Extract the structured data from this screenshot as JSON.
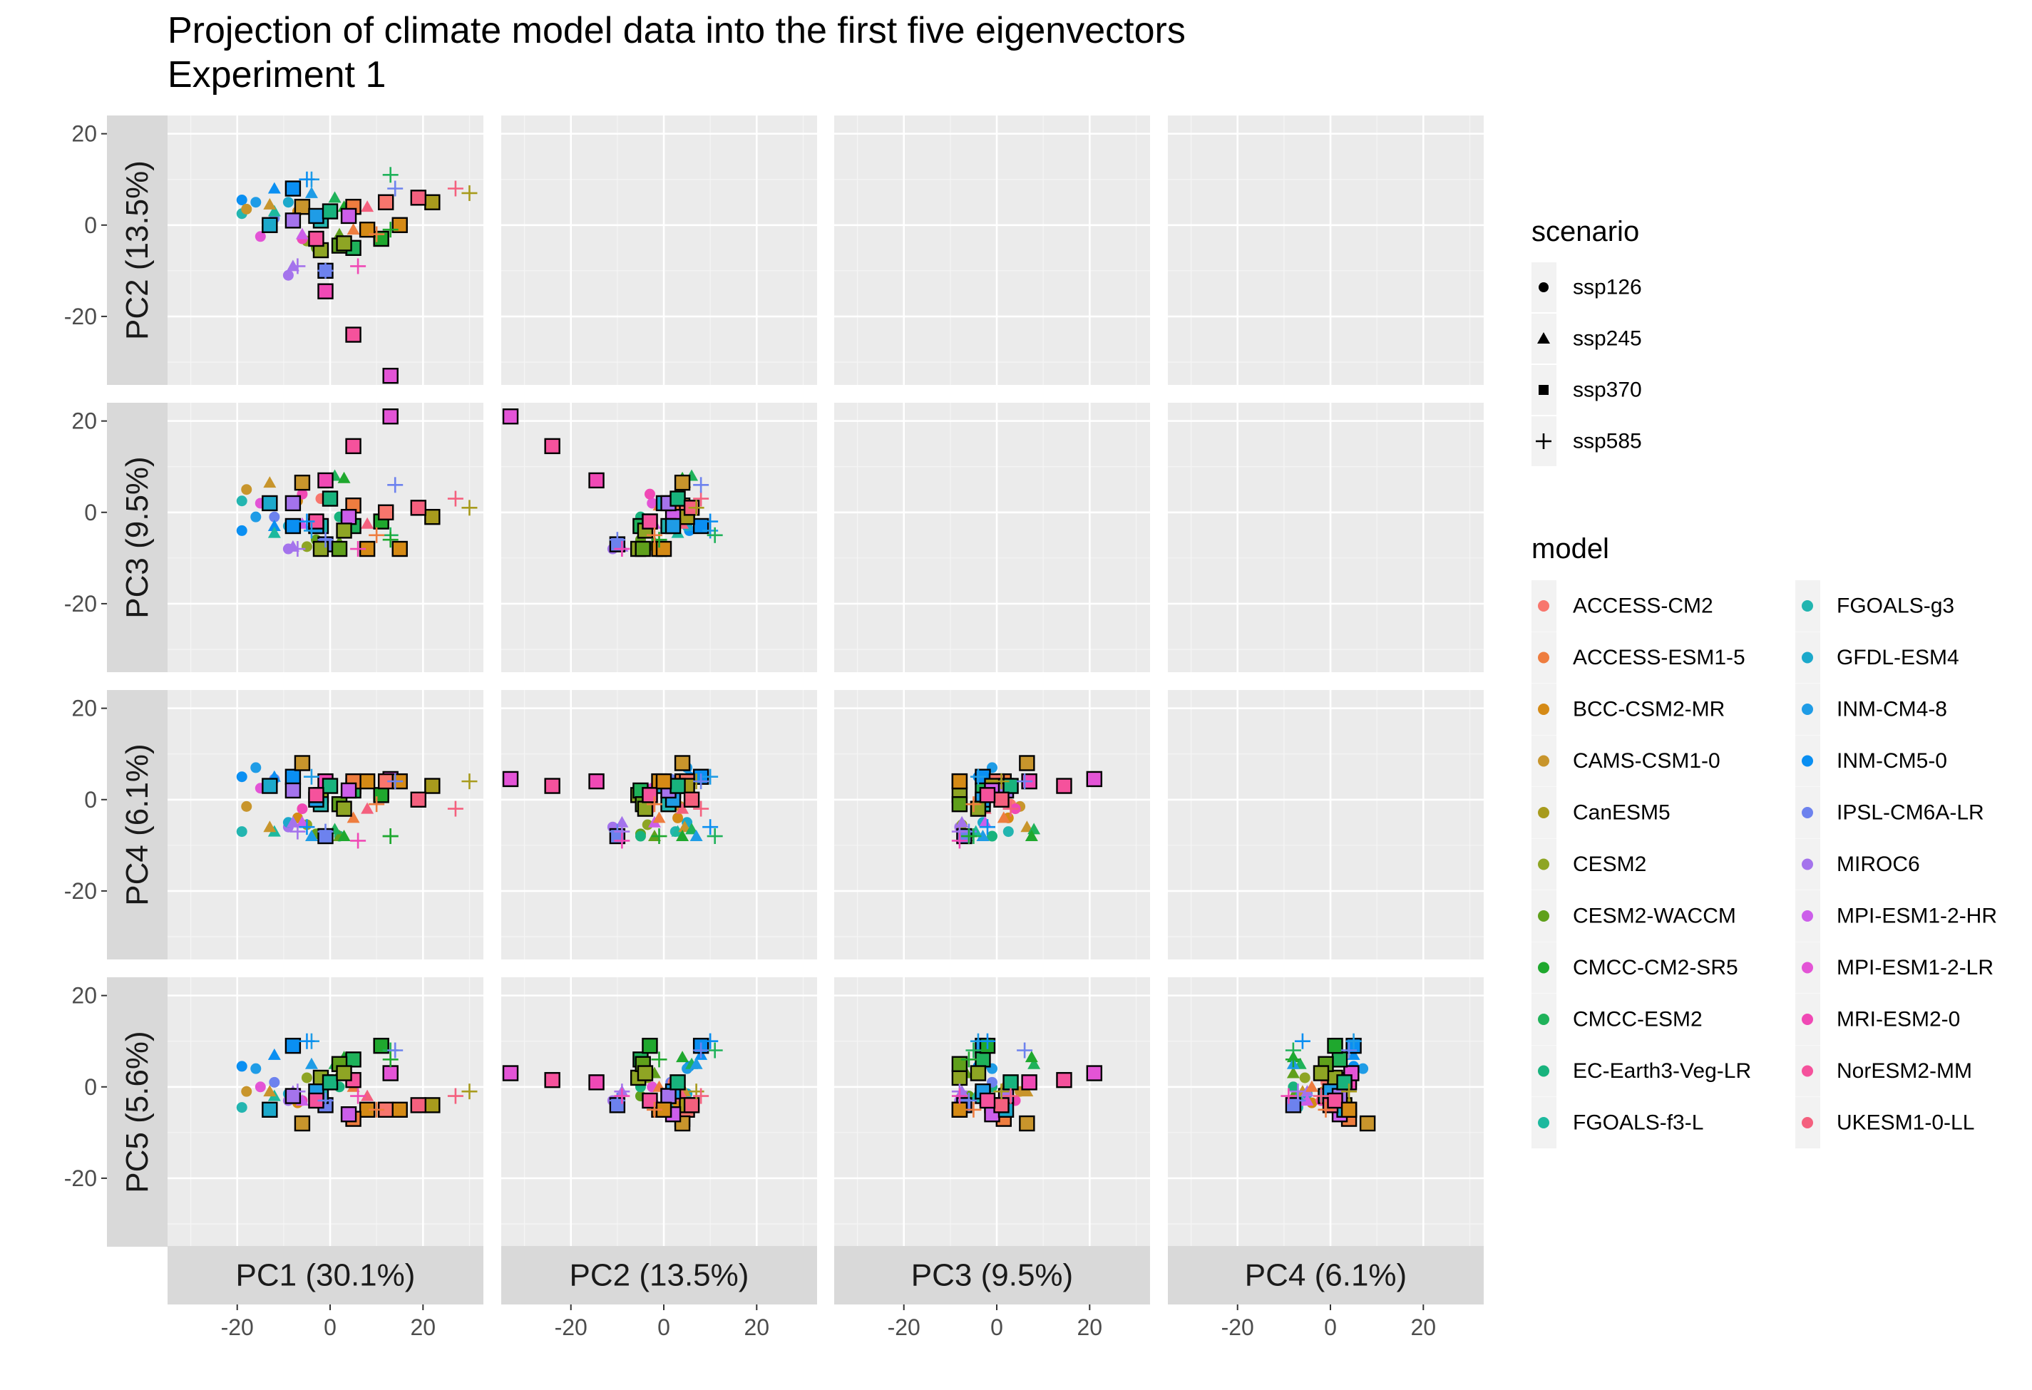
{
  "chart_data": {
    "type": "scatter",
    "title": "Projection of climate model data into the first five eigenvectors\n Experiment 1",
    "facet_cols": [
      "PC1 (30.1%)",
      "PC2 (13.5%)",
      "PC3 (9.5%)",
      "PC4 (6.1%)"
    ],
    "facet_rows": [
      "PC2 (13.5%)",
      "PC3 (9.5%)",
      "PC4 (6.1%)",
      "PC5 (5.6%)"
    ],
    "xlim": [
      -35,
      33
    ],
    "ylim": [
      -35,
      24
    ],
    "x_ticks": [
      -20,
      0,
      20
    ],
    "y_ticks": [
      20,
      0,
      -20
    ],
    "grid": true,
    "legend_placement": "right",
    "legend_scenario_title": "scenario",
    "legend_model_title": "model",
    "scenarios": [
      {
        "name": "ssp126",
        "shape": "circle"
      },
      {
        "name": "ssp245",
        "shape": "triangle"
      },
      {
        "name": "ssp370",
        "shape": "square"
      },
      {
        "name": "ssp585",
        "shape": "plus"
      }
    ],
    "models": [
      {
        "name": "ACCESS-CM2",
        "color": "#F8766D"
      },
      {
        "name": "ACCESS-ESM1-5",
        "color": "#EE7D3F"
      },
      {
        "name": "BCC-CSM2-MR",
        "color": "#D58A15"
      },
      {
        "name": "CAMS-CSM1-0",
        "color": "#C8952C"
      },
      {
        "name": "CanESM5",
        "color": "#A89B1D"
      },
      {
        "name": "CESM2",
        "color": "#8EA524"
      },
      {
        "name": "CESM2-WACCM",
        "color": "#5FA01B"
      },
      {
        "name": "CMCC-CM2-SR5",
        "color": "#1FA82E"
      },
      {
        "name": "CMCC-ESM2",
        "color": "#1FB25A"
      },
      {
        "name": "EC-Earth3-Veg-LR",
        "color": "#18B37D"
      },
      {
        "name": "FGOALS-f3-L",
        "color": "#1DB99E"
      },
      {
        "name": "FGOALS-g3",
        "color": "#23B5B0"
      },
      {
        "name": "GFDL-ESM4",
        "color": "#1CA9CB"
      },
      {
        "name": "INM-CM4-8",
        "color": "#1F9CE6"
      },
      {
        "name": "INM-CM5-0",
        "color": "#0A8FF2"
      },
      {
        "name": "IPSL-CM6A-LR",
        "color": "#6D82EE"
      },
      {
        "name": "MIROC6",
        "color": "#A473EC"
      },
      {
        "name": "MPI-ESM1-2-HR",
        "color": "#CC5EEA"
      },
      {
        "name": "MPI-ESM1-2-LR",
        "color": "#E354D6"
      },
      {
        "name": "MRI-ESM2-0",
        "color": "#F049B5"
      },
      {
        "name": "NorESM2-MM",
        "color": "#F5529C"
      },
      {
        "name": "UKESM1-0-LL",
        "color": "#F4607E"
      }
    ],
    "points": [
      {
        "model": "INM-CM5-0",
        "scenario": "ssp126",
        "pc": [
          -19,
          5.5,
          -4,
          5,
          4.5
        ]
      },
      {
        "model": "INM-CM4-8",
        "scenario": "ssp126",
        "pc": [
          -16,
          5,
          -1,
          7,
          4
        ]
      },
      {
        "model": "FGOALS-g3",
        "scenario": "ssp126",
        "pc": [
          -19,
          2.5,
          2.5,
          -7,
          -4.5
        ]
      },
      {
        "model": "CAMS-CSM1-0",
        "scenario": "ssp126",
        "pc": [
          -18,
          3.5,
          5,
          -1.5,
          -1
        ]
      },
      {
        "model": "MPI-ESM1-2-LR",
        "scenario": "ssp126",
        "pc": [
          -15,
          -2.5,
          2,
          2.5,
          0
        ]
      },
      {
        "model": "MIROC6",
        "scenario": "ssp126",
        "pc": [
          -9,
          -11,
          -8,
          -6,
          -3
        ]
      },
      {
        "model": "CESM2",
        "scenario": "ssp126",
        "pc": [
          -5,
          -3.5,
          -7.5,
          -5.5,
          2
        ]
      },
      {
        "model": "CESM2-WACCM",
        "scenario": "ssp126",
        "pc": [
          -3,
          -5,
          -6,
          -7.5,
          -2
        ]
      },
      {
        "model": "EC-Earth3-Veg-LR",
        "scenario": "ssp126",
        "pc": [
          2,
          -5,
          -1,
          -8,
          0
        ]
      },
      {
        "model": "GFDL-ESM4",
        "scenario": "ssp126",
        "pc": [
          -9,
          5,
          -3,
          -5,
          -1.5
        ]
      },
      {
        "model": "IPSL-CM6A-LR",
        "scenario": "ssp126",
        "pc": [
          -12,
          1.5,
          -1,
          4.5,
          1
        ]
      },
      {
        "model": "BCC-CSM2-MR",
        "scenario": "ssp126",
        "pc": [
          -7,
          3,
          2.5,
          -4,
          -3.5
        ]
      },
      {
        "model": "ACCESS-CM2",
        "scenario": "ssp126",
        "pc": [
          -2,
          2,
          3,
          -1,
          1
        ]
      },
      {
        "model": "MRI-ESM2-0",
        "scenario": "ssp126",
        "pc": [
          -6,
          -3,
          4,
          -2,
          -3
        ]
      },
      {
        "model": "INM-CM5-0",
        "scenario": "ssp245",
        "pc": [
          -12,
          8,
          -3,
          5,
          7
        ]
      },
      {
        "model": "FGOALS-f3-L",
        "scenario": "ssp245",
        "pc": [
          -12,
          3,
          -4.5,
          -7,
          -2
        ]
      },
      {
        "model": "CAMS-CSM1-0",
        "scenario": "ssp245",
        "pc": [
          -13,
          4.5,
          6.5,
          -6,
          -1
        ]
      },
      {
        "model": "MIROC6",
        "scenario": "ssp245",
        "pc": [
          -8,
          -9,
          -7.5,
          -5,
          -1
        ]
      },
      {
        "model": "CESM2-WACCM",
        "scenario": "ssp245",
        "pc": [
          2,
          -2,
          -6.5,
          -8,
          3
        ]
      },
      {
        "model": "CMCC-ESM2",
        "scenario": "ssp245",
        "pc": [
          1,
          6,
          8,
          -6.5,
          5
        ]
      },
      {
        "model": "CMCC-CM2-SR5",
        "scenario": "ssp245",
        "pc": [
          3,
          4,
          7.5,
          -8,
          6.5
        ]
      },
      {
        "model": "INM-CM4-8",
        "scenario": "ssp245",
        "pc": [
          -4,
          7,
          -3,
          -8,
          5
        ]
      },
      {
        "model": "MPI-ESM1-2-HR",
        "scenario": "ssp245",
        "pc": [
          -6,
          -2,
          -2.5,
          -5,
          -3
        ]
      },
      {
        "model": "UKESM1-0-LL",
        "scenario": "ssp245",
        "pc": [
          8,
          4,
          -2.5,
          -2,
          -2
        ]
      },
      {
        "model": "ACCESS-ESM1-5",
        "scenario": "ssp245",
        "pc": [
          5,
          -1,
          1.5,
          -4,
          0
        ]
      },
      {
        "model": "INM-CM5-0",
        "scenario": "ssp370",
        "pc": [
          -8,
          8,
          -3,
          5,
          9
        ]
      },
      {
        "model": "IPSL-CM6A-LR",
        "scenario": "ssp370",
        "pc": [
          -1,
          -10,
          -7,
          -8,
          -4
        ]
      },
      {
        "model": "MRI-ESM2-0",
        "scenario": "ssp370",
        "pc": [
          -1,
          -14.5,
          7,
          4,
          1
        ]
      },
      {
        "model": "NorESM2-MM",
        "scenario": "ssp370",
        "pc": [
          5,
          -24,
          14.5,
          3,
          1.5
        ]
      },
      {
        "model": "MPI-ESM1-2-LR",
        "scenario": "ssp370",
        "pc": [
          13,
          -33,
          21,
          4.5,
          3
        ]
      },
      {
        "model": "CESM2",
        "scenario": "ssp370",
        "pc": [
          -2,
          -5.5,
          -8,
          1,
          2
        ]
      },
      {
        "model": "CMCC-ESM2",
        "scenario": "ssp370",
        "pc": [
          5,
          -5,
          -3,
          2,
          6
        ]
      },
      {
        "model": "CESM2-WACCM",
        "scenario": "ssp370",
        "pc": [
          2,
          -4.5,
          -8,
          -1,
          5
        ]
      },
      {
        "model": "CMCC-CM2-SR5",
        "scenario": "ssp370",
        "pc": [
          11,
          -3,
          -2,
          1,
          9
        ]
      },
      {
        "model": "BCC-CSM2-MR",
        "scenario": "ssp370",
        "pc": [
          8,
          -1,
          -8,
          4,
          -5
        ]
      },
      {
        "model": "ACCESS-ESM1-5",
        "scenario": "ssp370",
        "pc": [
          5,
          4,
          1.5,
          4,
          -7
        ]
      },
      {
        "model": "ACCESS-CM2",
        "scenario": "ssp370",
        "pc": [
          12,
          5,
          0,
          4,
          -5
        ]
      },
      {
        "model": "CAMS-CSM1-0",
        "scenario": "ssp370",
        "pc": [
          -6,
          4,
          6.5,
          8,
          -8
        ]
      },
      {
        "model": "CanESM5",
        "scenario": "ssp370",
        "pc": [
          22,
          5,
          -1,
          3,
          -4
        ]
      },
      {
        "model": "MPI-ESM1-2-HR",
        "scenario": "ssp370",
        "pc": [
          4,
          2,
          -1,
          2,
          -6
        ]
      },
      {
        "model": "GFDL-ESM4",
        "scenario": "ssp370",
        "pc": [
          -13,
          0,
          2,
          3,
          -5
        ]
      },
      {
        "model": "FGOALS-g3",
        "scenario": "ssp370",
        "pc": [
          -2,
          1,
          -3,
          -1,
          -2
        ]
      },
      {
        "model": "INM-CM4-8",
        "scenario": "ssp370",
        "pc": [
          -3,
          2,
          -3,
          0,
          -1
        ]
      },
      {
        "model": "MIROC6",
        "scenario": "ssp370",
        "pc": [
          -8,
          1,
          2,
          2,
          -2
        ]
      },
      {
        "model": "EC-Earth3-Veg-LR",
        "scenario": "ssp370",
        "pc": [
          0,
          3,
          3,
          3,
          1
        ]
      },
      {
        "model": "CESM2",
        "scenario": "ssp370",
        "pc": [
          3,
          -4,
          -4,
          -2,
          3
        ]
      },
      {
        "model": "UKESM1-0-LL",
        "scenario": "ssp370",
        "pc": [
          19,
          6,
          1,
          0,
          -4
        ]
      },
      {
        "model": "NorESM2-MM",
        "scenario": "ssp370",
        "pc": [
          -3,
          -3,
          -2,
          1,
          -3
        ]
      },
      {
        "model": "BCC-CSM2-MR",
        "scenario": "ssp370",
        "pc": [
          15,
          0,
          -8,
          4,
          -5
        ]
      },
      {
        "model": "INM-CM4-8",
        "scenario": "ssp585",
        "pc": [
          -4,
          10,
          -4,
          5,
          10
        ]
      },
      {
        "model": "IPSL-CM6A-LR",
        "scenario": "ssp585",
        "pc": [
          -1,
          -10,
          -6,
          -7,
          -3
        ]
      },
      {
        "model": "MIROC6",
        "scenario": "ssp585",
        "pc": [
          -7,
          -9,
          -8,
          -7,
          -1
        ]
      },
      {
        "model": "MRI-ESM2-0",
        "scenario": "ssp585",
        "pc": [
          6,
          -9,
          -8,
          -9,
          -2
        ]
      },
      {
        "model": "CMCC-ESM2",
        "scenario": "ssp585",
        "pc": [
          13,
          11,
          -5,
          -8,
          8
        ]
      },
      {
        "model": "CMCC-CM2-SR5",
        "scenario": "ssp585",
        "pc": [
          13,
          -1,
          -6,
          -8,
          6
        ]
      },
      {
        "model": "CanESM5",
        "scenario": "ssp585",
        "pc": [
          30,
          7,
          1,
          4,
          -1
        ]
      },
      {
        "model": "UKESM1-0-LL",
        "scenario": "ssp585",
        "pc": [
          27,
          8,
          3,
          -2,
          -2
        ]
      },
      {
        "model": "IPSL-CM6A-LR",
        "scenario": "ssp585",
        "pc": [
          14,
          8,
          6,
          4,
          8
        ]
      },
      {
        "model": "ACCESS-ESM1-5",
        "scenario": "ssp585",
        "pc": [
          10,
          -2,
          -5,
          -1,
          -5
        ]
      },
      {
        "model": "INM-CM5-0",
        "scenario": "ssp585",
        "pc": [
          -5,
          10,
          -2,
          -6,
          10
        ]
      }
    ]
  }
}
